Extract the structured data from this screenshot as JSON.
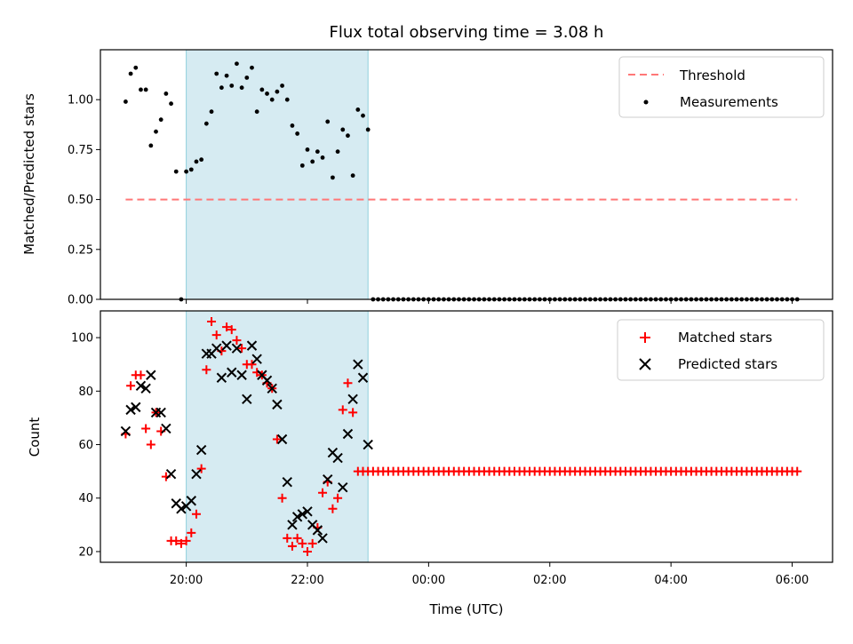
{
  "chart_data": [
    {
      "type": "scatter",
      "title": "Flux total observing time = 3.08 h",
      "xlabel": "",
      "ylabel": "Matched/Predicted stars",
      "ylim": [
        0.0,
        1.25
      ],
      "yticks": [
        0.0,
        0.25,
        0.5,
        0.75,
        1.0
      ],
      "ytick_labels": [
        "0.00",
        "0.25",
        "0.50",
        "0.75",
        "1.00"
      ],
      "grid": false,
      "legend": "top-right",
      "colors": {
        "threshold": "#ff7777",
        "measurements": "#000000",
        "shade": "#add8e6"
      },
      "shaded_span": {
        "start": "20:00",
        "end": "23:00"
      },
      "threshold": {
        "name": "Threshold",
        "value": 0.5,
        "x_start": "19:00",
        "x_end": "06:05"
      },
      "measurements": {
        "name": "Measurements",
        "x": [
          "19:00",
          "19:05",
          "19:10",
          "19:15",
          "19:20",
          "19:25",
          "19:30",
          "19:35",
          "19:40",
          "19:45",
          "19:50",
          "19:55",
          "20:00",
          "20:05",
          "20:10",
          "20:15",
          "20:20",
          "20:25",
          "20:30",
          "20:35",
          "20:40",
          "20:45",
          "20:50",
          "20:55",
          "21:00",
          "21:05",
          "21:10",
          "21:15",
          "21:20",
          "21:25",
          "21:30",
          "21:35",
          "21:40",
          "21:45",
          "21:50",
          "21:55",
          "22:00",
          "22:05",
          "22:10",
          "22:15",
          "22:20",
          "22:25",
          "22:30",
          "22:35",
          "22:40",
          "22:45",
          "22:50",
          "22:55",
          "23:00"
        ],
        "y": [
          0.99,
          1.13,
          1.16,
          1.05,
          1.05,
          0.77,
          0.84,
          0.9,
          1.03,
          0.98,
          0.64,
          0.0,
          0.64,
          0.65,
          0.69,
          0.7,
          0.88,
          0.94,
          1.13,
          1.06,
          1.12,
          1.07,
          1.18,
          1.06,
          1.11,
          1.16,
          0.94,
          1.05,
          1.03,
          1.0,
          1.04,
          1.07,
          1.0,
          0.87,
          0.83,
          0.67,
          0.75,
          0.69,
          0.74,
          0.71,
          0.89,
          0.61,
          0.74,
          0.85,
          0.82,
          0.62,
          0.95,
          0.92,
          0.85
        ],
        "zero_run": {
          "start": "23:05",
          "end": "06:05",
          "step_minutes": 5,
          "value": 0.0
        }
      }
    },
    {
      "type": "scatter",
      "title": "",
      "xlabel": "Time (UTC)",
      "ylabel": "Count",
      "ylim": [
        16,
        110
      ],
      "yticks": [
        20,
        40,
        60,
        80,
        100
      ],
      "ytick_labels": [
        "20",
        "40",
        "60",
        "80",
        "100"
      ],
      "xticks": [
        "20:00",
        "22:00",
        "00:00",
        "02:00",
        "04:00",
        "06:00"
      ],
      "x_start": "19:00",
      "x_end": "06:05",
      "xlim": [
        "18:35",
        "06:40"
      ],
      "grid": false,
      "legend": "top-right",
      "colors": {
        "matched": "#ff0000",
        "predicted": "#000000",
        "shade": "#add8e6"
      },
      "shaded_span": {
        "start": "20:00",
        "end": "23:00"
      },
      "series": [
        {
          "name": "Matched stars",
          "marker": "+",
          "x": [
            "19:00",
            "19:05",
            "19:10",
            "19:15",
            "19:20",
            "19:25",
            "19:30",
            "19:35",
            "19:40",
            "19:45",
            "19:50",
            "19:55",
            "20:00",
            "20:05",
            "20:10",
            "20:15",
            "20:20",
            "20:25",
            "20:30",
            "20:35",
            "20:40",
            "20:45",
            "20:50",
            "20:55",
            "21:00",
            "21:05",
            "21:10",
            "21:15",
            "21:20",
            "21:25",
            "21:30",
            "21:35",
            "21:40",
            "21:45",
            "21:50",
            "21:55",
            "22:00",
            "22:05",
            "22:10",
            "22:15",
            "22:20",
            "22:25",
            "22:30",
            "22:35",
            "22:40",
            "22:45",
            "22:50",
            "22:55",
            "23:00"
          ],
          "values": [
            64,
            82,
            86,
            86,
            66,
            60,
            72,
            65,
            48,
            24,
            24,
            23,
            24,
            27,
            34,
            51,
            88,
            106,
            101,
            95,
            104,
            103,
            99,
            96,
            90,
            90,
            87,
            86,
            83,
            81,
            62,
            40,
            25,
            22,
            25,
            23,
            20,
            23,
            29,
            42,
            46,
            36,
            40,
            73,
            83,
            72,
            50,
            50,
            50
          ],
          "constant_run": {
            "start": "23:05",
            "end": "06:05",
            "step_minutes": 5,
            "value": 50
          }
        },
        {
          "name": "Predicted stars",
          "marker": "x",
          "x": [
            "19:00",
            "19:05",
            "19:10",
            "19:15",
            "19:20",
            "19:25",
            "19:30",
            "19:35",
            "19:40",
            "19:45",
            "19:50",
            "19:55",
            "20:00",
            "20:05",
            "20:10",
            "20:15",
            "20:20",
            "20:25",
            "20:30",
            "20:35",
            "20:40",
            "20:45",
            "20:50",
            "20:55",
            "21:00",
            "21:05",
            "21:10",
            "21:15",
            "21:20",
            "21:25",
            "21:30",
            "21:35",
            "21:40",
            "21:45",
            "21:50",
            "21:55",
            "22:00",
            "22:05",
            "22:10",
            "22:15",
            "22:20",
            "22:25",
            "22:30",
            "22:35",
            "22:40",
            "22:45",
            "22:50",
            "22:55",
            "23:00"
          ],
          "values": [
            65,
            73,
            74,
            82,
            81,
            86,
            72,
            72,
            66,
            49,
            38,
            36,
            37,
            39,
            49,
            58,
            94,
            94,
            96,
            85,
            97,
            87,
            96,
            86,
            77,
            97,
            92,
            86,
            84,
            81,
            75,
            62,
            46,
            30,
            33,
            34,
            35,
            30,
            28,
            25,
            47,
            57,
            55,
            44,
            64,
            77,
            90,
            85,
            60
          ]
        }
      ]
    }
  ]
}
